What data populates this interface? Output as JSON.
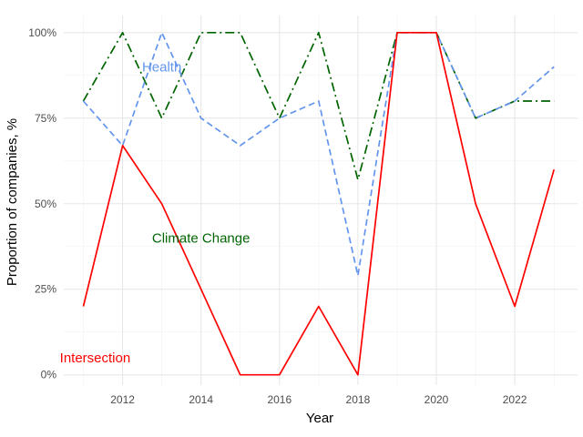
{
  "chart_data": {
    "type": "line",
    "title": "",
    "xlabel": "Year",
    "ylabel": "Proportion of companies, %",
    "x": [
      2011,
      2012,
      2013,
      2014,
      2015,
      2016,
      2017,
      2018,
      2019,
      2020,
      2021,
      2022,
      2023
    ],
    "xlim": [
      2010.5,
      2023.6
    ],
    "ylim": [
      -0.03,
      1.05
    ],
    "x_ticks": [
      2012,
      2014,
      2016,
      2018,
      2020,
      2022
    ],
    "x_tick_labels": [
      "2012",
      "2014",
      "2016",
      "2018",
      "2020",
      "2022"
    ],
    "y_ticks": [
      0,
      0.25,
      0.5,
      0.75,
      1.0
    ],
    "y_tick_labels": [
      "0%",
      "25%",
      "50%",
      "75%",
      "100%"
    ],
    "grid": true,
    "legend": "none",
    "series": [
      {
        "name": "Climate Change",
        "color": "#006400",
        "dash": "dashdot",
        "values": [
          0.8,
          1.0,
          0.75,
          1.0,
          1.0,
          0.75,
          1.0,
          0.57,
          1.0,
          1.0,
          0.75,
          0.8,
          0.8
        ]
      },
      {
        "name": "Health",
        "color": "#6495ED",
        "dash": "dashed",
        "values": [
          0.8,
          0.67,
          1.0,
          0.75,
          0.67,
          0.75,
          0.8,
          0.29,
          1.0,
          1.0,
          0.75,
          0.8,
          0.9
        ]
      },
      {
        "name": "Intersection",
        "color": "#FF0000",
        "dash": "solid",
        "values": [
          0.2,
          0.67,
          0.5,
          0.25,
          0.0,
          0.0,
          0.2,
          0.0,
          1.0,
          1.0,
          0.5,
          0.2,
          0.6
        ]
      }
    ],
    "annotations": [
      {
        "text": "Health",
        "x": 2013.0,
        "y": 0.9,
        "color": "#6495ED"
      },
      {
        "text": "Climate Change",
        "x": 2014.0,
        "y": 0.4,
        "color": "#006400"
      },
      {
        "text": "Intersection",
        "x": 2011.3,
        "y": 0.05,
        "color": "#FF0000"
      }
    ]
  }
}
